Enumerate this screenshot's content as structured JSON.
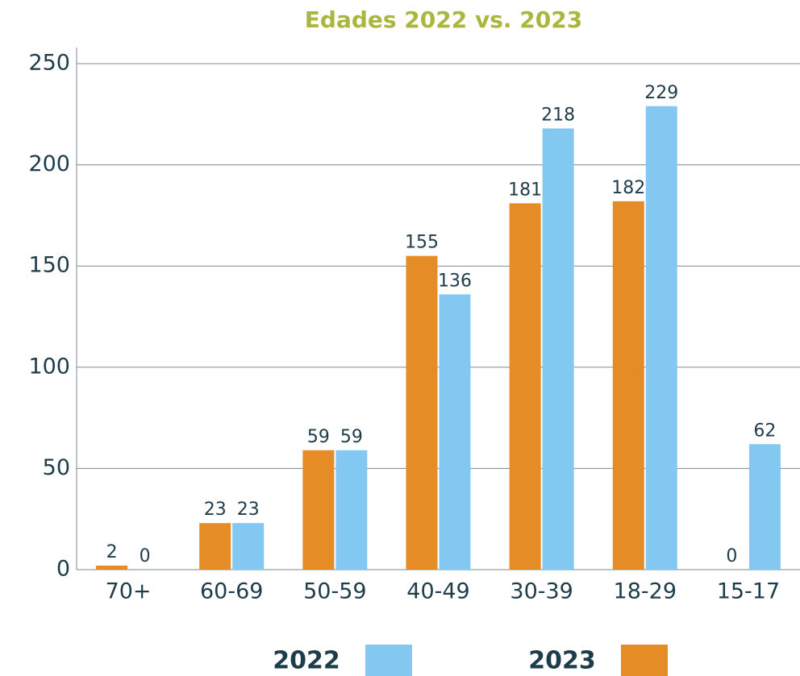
{
  "chart_data": {
    "type": "bar",
    "title": "Edades 2022 vs. 2023",
    "categories": [
      "70+",
      "60-69",
      "50-59",
      "40-49",
      "30-39",
      "18-29",
      "15-17"
    ],
    "series": [
      {
        "name": "2023",
        "color": "#e58c26",
        "values": [
          2,
          23,
          59,
          155,
          181,
          182,
          0
        ]
      },
      {
        "name": "2022",
        "color": "#83c8f0",
        "values": [
          0,
          23,
          59,
          136,
          218,
          229,
          62
        ]
      }
    ],
    "ylim": [
      0,
      250
    ],
    "yticks": [
      0,
      50,
      100,
      150,
      200,
      250
    ],
    "grid": true
  }
}
